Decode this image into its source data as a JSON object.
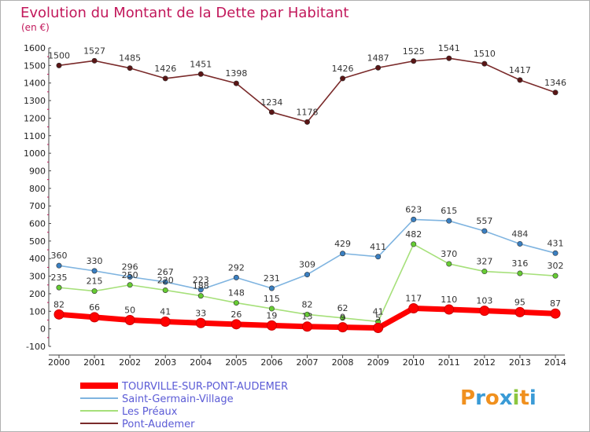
{
  "header": {
    "title": "Evolution du Montant de la Dette par Habitant",
    "unit": "(en €)"
  },
  "brand": {
    "logo_text": "Proxiti"
  },
  "chart_data": {
    "type": "line",
    "title": "Evolution du Montant de la Dette par Habitant",
    "subtitle": "(en €)",
    "xlabel": "",
    "ylabel": "",
    "categories": [
      "2000",
      "2001",
      "2002",
      "2003",
      "2004",
      "2005",
      "2006",
      "2007",
      "2008",
      "2009",
      "2010",
      "2011",
      "2012",
      "2013",
      "2014"
    ],
    "ylim": [
      -100,
      1600
    ],
    "yticks": [
      -100,
      0,
      100,
      200,
      300,
      400,
      500,
      600,
      700,
      800,
      900,
      1000,
      1100,
      1200,
      1300,
      1400,
      1500,
      1600
    ],
    "grid": false,
    "legend_position": "bottom-left",
    "series": [
      {
        "name": "TOURVILLE-SUR-PONT-AUDEMER",
        "color": "#ff0000",
        "marker": "#ff0000",
        "bold": true,
        "values": [
          82,
          66,
          50,
          41,
          33,
          26,
          19,
          13,
          9,
          5,
          117,
          110,
          103,
          95,
          87
        ]
      },
      {
        "name": "Saint-Germain-Village",
        "color": "#7fb4e0",
        "marker": "#3a7fc1",
        "bold": false,
        "values": [
          360,
          330,
          296,
          267,
          223,
          292,
          231,
          309,
          429,
          411,
          623,
          615,
          557,
          484,
          431
        ]
      },
      {
        "name": "Les Préaux",
        "color": "#a6e07a",
        "marker": "#66cc33",
        "bold": false,
        "values": [
          235,
          215,
          250,
          220,
          188,
          148,
          115,
          82,
          62,
          41,
          482,
          370,
          327,
          316,
          302
        ]
      },
      {
        "name": "Pont-Audemer",
        "color": "#7a2a2a",
        "marker": "#5a1515",
        "bold": false,
        "values": [
          1500,
          1527,
          1485,
          1426,
          1451,
          1398,
          1234,
          1178,
          1426,
          1487,
          1525,
          1541,
          1510,
          1417,
          1346
        ]
      }
    ]
  }
}
